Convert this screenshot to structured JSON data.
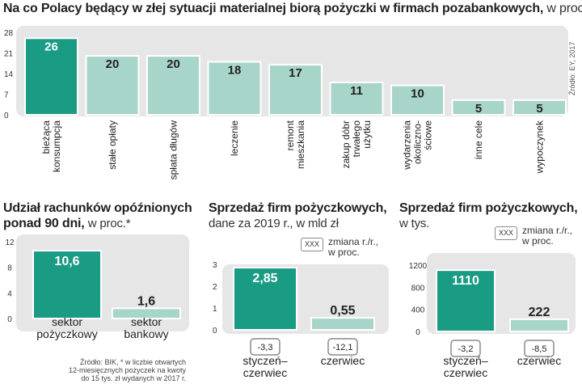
{
  "main_chart": {
    "title": "Na co Polacy będący w złej sytuacji materialnej biorą pożyczki w firmach pozabankowych,",
    "title_unit": "w proc.",
    "source": "Źródło: EY, 2017"
  },
  "panel2": {
    "title_line1": "Udział rachunków opóźnionych",
    "title_line2_bold": "ponad 90 dni,",
    "title_line2_light": "w proc.*",
    "footnote_line1": "Źródło: BIK, * w liczbie otwartych",
    "footnote_line2": "12-miesięcznych pożyczek na kwoty",
    "footnote_line3": "do 15 tys. zł wydanych w 2017 r."
  },
  "panel3": {
    "title_line1": "Sprzedaż firm pożyczkowych,",
    "title_line2": "dane za 2019 r., w mld zł",
    "legend_box": "XXX",
    "legend_line1": "zmiana r./r.,",
    "legend_line2": "w proc."
  },
  "panel4": {
    "title_line1": "Sprzedaż firm pożyczkowych,",
    "title_line2": "w tys.",
    "legend_box": "XXX",
    "legend_line1": "zmiana r./r.,",
    "legend_line2": "w proc."
  },
  "colors": {
    "primary": "#1a9b84",
    "secondary": "#a8d5c9",
    "panel": "#e6e6e6"
  },
  "chart_data": [
    {
      "type": "bar",
      "title": "Na co Polacy będący w złej sytuacji materialnej biorą pożyczki w firmach pozabankowych, w proc.",
      "categories": [
        [
          "bieżąca",
          "konsumpcja"
        ],
        [
          "stałe opłaty"
        ],
        [
          "spłata długów"
        ],
        [
          "leczenie"
        ],
        [
          "remont",
          "mieszkania"
        ],
        [
          "zakup dóbr",
          "trwałego",
          "użytku"
        ],
        [
          "wydarzenia",
          "okoliczno-",
          "ściowe"
        ],
        [
          "inne cele"
        ],
        [
          "wypoczynek"
        ]
      ],
      "values": [
        26,
        20,
        20,
        18,
        17,
        11,
        10,
        5,
        5
      ],
      "ylim": [
        0,
        28
      ],
      "yticks": [
        0,
        7,
        14,
        21,
        28
      ],
      "highlight_index": 0
    },
    {
      "type": "bar",
      "title": "Udział rachunków opóźnionych ponad 90 dni, w proc.*",
      "categories": [
        [
          "sektor",
          "pożyczkowy"
        ],
        [
          "sektor",
          "bankowy"
        ]
      ],
      "values": [
        10.6,
        1.6
      ],
      "value_labels": [
        "10,6",
        "1,6"
      ],
      "ylim": [
        0,
        12
      ],
      "yticks": [
        0,
        4,
        8,
        12
      ],
      "highlight_index": 0
    },
    {
      "type": "bar",
      "title": "Sprzedaż firm pożyczkowych, dane za 2019 r., w mld zł",
      "categories": [
        [
          "styczeń–",
          "czerwiec"
        ],
        [
          "czerwiec"
        ]
      ],
      "values": [
        2.85,
        0.55
      ],
      "value_labels": [
        "2,85",
        "0,55"
      ],
      "changes": [
        "-3,3",
        "-12,1"
      ],
      "ylim": [
        0,
        3
      ],
      "yticks": [
        0,
        1,
        2,
        3
      ],
      "highlight_index": 0
    },
    {
      "type": "bar",
      "title": "Sprzedaż firm pożyczkowych, w tys.",
      "categories": [
        [
          "styczeń–",
          "czerwiec"
        ],
        [
          "czerwiec"
        ]
      ],
      "values": [
        1110,
        222
      ],
      "value_labels": [
        "1110",
        "222"
      ],
      "changes": [
        "-3,2",
        "-8,5"
      ],
      "ylim": [
        0,
        1200
      ],
      "yticks": [
        0,
        400,
        800,
        1200
      ],
      "highlight_index": 0
    }
  ]
}
